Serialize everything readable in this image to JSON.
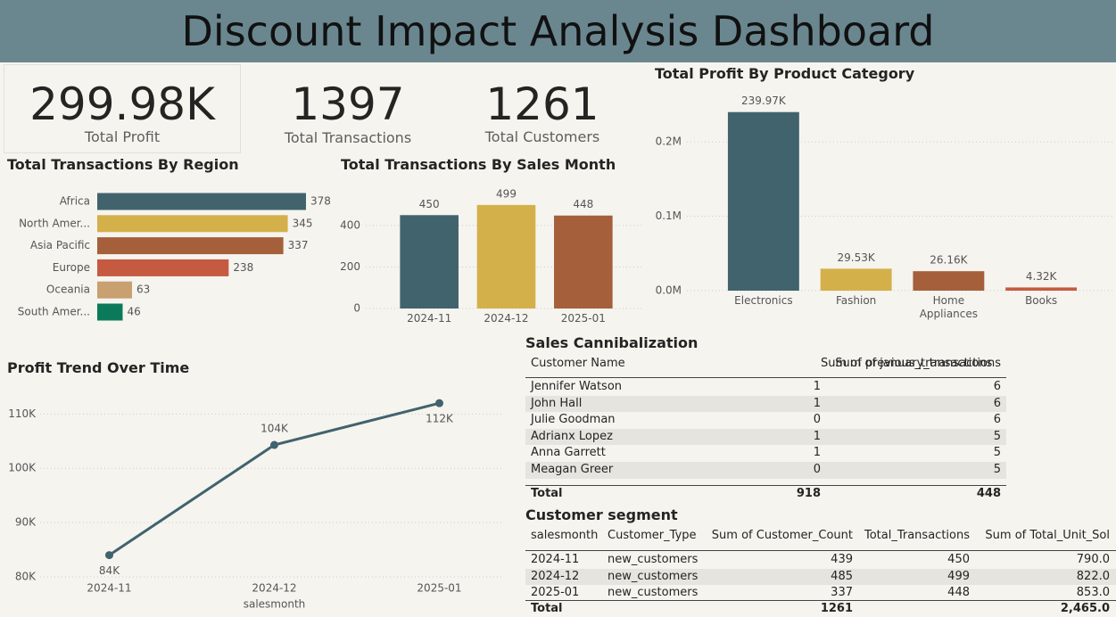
{
  "header": {
    "title": "Discount Impact Analysis Dashboard"
  },
  "cards": [
    {
      "value": "299.98K",
      "label": "Total Profit"
    },
    {
      "value": 1397,
      "label": "Total Transactions"
    },
    {
      "value": 1261,
      "label": "Total Customers"
    }
  ],
  "chart_data": [
    {
      "type": "bar",
      "orientation": "horizontal",
      "title": "Total Transactions By Region",
      "categories": [
        "Africa",
        "North Amer...",
        "Asia Pacific",
        "Europe",
        "Oceania",
        "South Amer..."
      ],
      "values": [
        378,
        345,
        337,
        238,
        63,
        46
      ],
      "colors": [
        "#41636e",
        "#d4b04a",
        "#a5603b",
        "#c65a40",
        "#c9a06f",
        "#0b7a5a"
      ]
    },
    {
      "type": "bar",
      "title": "Total Transactions By Sales Month",
      "categories": [
        "2024-11",
        "2024-12",
        "2025-01"
      ],
      "values": [
        450,
        499,
        448
      ],
      "colors": [
        "#41636e",
        "#d4b04a",
        "#a5603b"
      ],
      "ylim": [
        0,
        550
      ],
      "yticks": [
        0,
        200,
        400
      ],
      "grid": true
    },
    {
      "type": "bar",
      "title": "Total Profit By Product Category",
      "categories": [
        "Electronics",
        "Fashion",
        "Home Appliances",
        "Books"
      ],
      "values": [
        239970,
        29530,
        26160,
        4320
      ],
      "value_labels": [
        "239.97K",
        "29.53K",
        "26.16K",
        "4.32K"
      ],
      "colors": [
        "#41636e",
        "#d4b04a",
        "#a5603b",
        "#c65a40"
      ],
      "ylim": [
        0,
        260000
      ],
      "yticks": [
        {
          "value": 0,
          "label": "0.0M"
        },
        {
          "value": 100000,
          "label": "0.1M"
        },
        {
          "value": 200000,
          "label": "0.2M"
        }
      ],
      "grid": true
    },
    {
      "type": "line",
      "title": "Profit Trend Over Time",
      "x_label": "salesmonth",
      "categories": [
        "2024-11",
        "2024-12",
        "2025-01"
      ],
      "values": [
        84000,
        104300,
        112000
      ],
      "value_labels": [
        "84K",
        "104K",
        "112K"
      ],
      "color": "#41636e",
      "ylim": [
        79500,
        114000
      ],
      "yticks": [
        {
          "value": 80000,
          "label": "80K"
        },
        {
          "value": 90000,
          "label": "90K"
        },
        {
          "value": 100000,
          "label": "100K"
        },
        {
          "value": 110000,
          "label": "110K"
        }
      ],
      "grid": true
    }
  ],
  "tables": [
    {
      "title": "Sales Cannibalization",
      "columns": [
        "Customer Name",
        "Sum of previous_transactions",
        "Sum of january_transactions"
      ],
      "rows": [
        [
          "Jennifer Watson",
          1,
          6
        ],
        [
          "John Hall",
          1,
          6
        ],
        [
          "Julie Goodman",
          0,
          6
        ],
        [
          "Adrianx Lopez",
          1,
          5
        ],
        [
          "Anna Garrett",
          1,
          5
        ],
        [
          "Meagan Greer",
          0,
          5
        ]
      ],
      "total": [
        "Total",
        918,
        448
      ]
    },
    {
      "title": "Customer segment",
      "columns": [
        "salesmonth",
        "Customer_Type",
        "Sum of Customer_Count",
        "Total_Transactions",
        "Sum of Total_Unit_Sol"
      ],
      "rows": [
        [
          "2024-11",
          "new_customers",
          439,
          450,
          "790.0"
        ],
        [
          "2024-12",
          "new_customers",
          485,
          499,
          "822.0"
        ],
        [
          "2025-01",
          "new_customers",
          337,
          448,
          "853.0"
        ]
      ],
      "total": [
        "Total",
        null,
        1261,
        null,
        "2,465.0"
      ]
    }
  ]
}
